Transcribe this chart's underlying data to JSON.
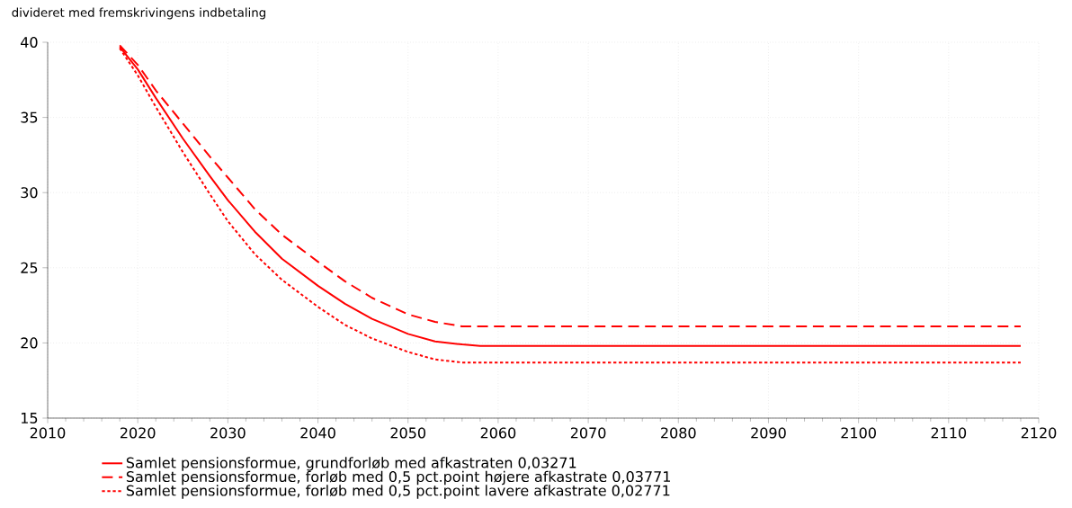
{
  "chart_data": {
    "type": "line",
    "title": "divideret med fremskrivingens indbetaling",
    "x": [
      2018,
      2020,
      2022,
      2025,
      2028,
      2030,
      2033,
      2036,
      2040,
      2043,
      2046,
      2050,
      2053,
      2056,
      2058,
      2118
    ],
    "series": [
      {
        "name": "Samlet pensionsformue, grundforløb med afkastraten 0,03271",
        "color": "#ff0000",
        "line_style": "solid",
        "values": [
          39.7,
          38.2,
          36.3,
          33.6,
          31.1,
          29.5,
          27.4,
          25.6,
          23.8,
          22.6,
          21.6,
          20.6,
          20.1,
          19.9,
          19.8,
          19.8
        ]
      },
      {
        "name": "Samlet pensionsformue, forløb med 0,5 pct.point højere afkastrate 0,03771",
        "color": "#ff0000",
        "line_style": "dashed",
        "values": [
          39.8,
          38.5,
          36.8,
          34.6,
          32.4,
          31.0,
          28.9,
          27.2,
          25.4,
          24.1,
          23.0,
          21.9,
          21.4,
          21.1,
          21.1,
          21.1
        ]
      },
      {
        "name": "Samlet pensionsformue, forløb med 0,5 pct.point lavere afkastrate 0,02771",
        "color": "#ff0000",
        "line_style": "dotted",
        "values": [
          39.6,
          37.8,
          35.7,
          32.7,
          29.9,
          28.1,
          25.9,
          24.2,
          22.4,
          21.2,
          20.3,
          19.4,
          18.9,
          18.7,
          18.7,
          18.7
        ]
      }
    ],
    "xlim": [
      2010,
      2120
    ],
    "xticks": [
      2010,
      2020,
      2030,
      2040,
      2050,
      2060,
      2070,
      2080,
      2090,
      2100,
      2110,
      2120
    ],
    "ylim": [
      15,
      40
    ],
    "yticks": [
      15,
      20,
      25,
      30,
      35,
      40
    ],
    "grid": true,
    "legend": "bottom",
    "marker": "none"
  }
}
